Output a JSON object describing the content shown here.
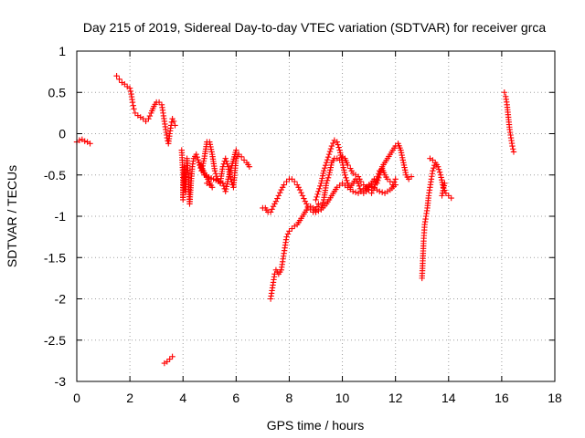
{
  "chart_data": {
    "type": "scatter",
    "title": "Day 215 of 2019, Sidereal Day-to-day VTEC variation (SDTVAR) for receiver grca",
    "xlabel": "GPS time / hours",
    "ylabel": "SDTVAR / TECUs",
    "xlim": [
      0,
      18
    ],
    "ylim": [
      -3,
      1
    ],
    "xticks": [
      0,
      2,
      4,
      6,
      8,
      10,
      12,
      14,
      16,
      18
    ],
    "yticks": [
      1,
      0.5,
      0,
      -0.5,
      -1,
      -1.5,
      -2,
      -2.5,
      -3
    ],
    "grid": true,
    "marker": "+",
    "color": "#ff0000",
    "series": [
      {
        "name": "SDTVAR",
        "segments": [
          [
            [
              0.0,
              -0.1
            ],
            [
              0.1,
              -0.08
            ],
            [
              0.2,
              -0.07
            ],
            [
              0.3,
              -0.09
            ],
            [
              0.4,
              -0.1
            ],
            [
              0.5,
              -0.12
            ]
          ],
          [
            [
              1.5,
              0.7
            ],
            [
              1.6,
              0.66
            ],
            [
              1.7,
              0.62
            ],
            [
              1.8,
              0.6
            ],
            [
              1.9,
              0.57
            ],
            [
              2.0,
              0.55
            ],
            [
              2.05,
              0.48
            ],
            [
              2.1,
              0.38
            ],
            [
              2.15,
              0.3
            ],
            [
              2.2,
              0.25
            ],
            [
              2.3,
              0.22
            ],
            [
              2.4,
              0.2
            ],
            [
              2.5,
              0.18
            ],
            [
              2.6,
              0.15
            ],
            [
              2.7,
              0.18
            ],
            [
              2.8,
              0.25
            ],
            [
              2.9,
              0.33
            ],
            [
              3.0,
              0.38
            ],
            [
              3.1,
              0.38
            ],
            [
              3.2,
              0.35
            ],
            [
              3.25,
              0.25
            ],
            [
              3.3,
              0.15
            ],
            [
              3.35,
              0.05
            ],
            [
              3.4,
              -0.05
            ],
            [
              3.45,
              -0.12
            ],
            [
              3.5,
              0.0
            ],
            [
              3.55,
              0.1
            ],
            [
              3.6,
              0.18
            ],
            [
              3.65,
              0.15
            ],
            [
              3.7,
              0.1
            ]
          ],
          [
            [
              3.3,
              -2.78
            ],
            [
              3.4,
              -2.76
            ],
            [
              3.5,
              -2.73
            ],
            [
              3.6,
              -2.7
            ]
          ],
          [
            [
              3.95,
              -0.2
            ],
            [
              4.0,
              -0.5
            ],
            [
              4.0,
              -0.8
            ],
            [
              4.05,
              -0.4
            ],
            [
              4.1,
              -0.7
            ],
            [
              4.15,
              -0.3
            ],
            [
              4.2,
              -0.5
            ],
            [
              4.25,
              -0.85
            ],
            [
              4.3,
              -0.6
            ],
            [
              4.35,
              -0.4
            ],
            [
              4.4,
              -0.3
            ],
            [
              4.5,
              -0.25
            ],
            [
              4.6,
              -0.35
            ],
            [
              4.7,
              -0.45
            ],
            [
              4.8,
              -0.3
            ],
            [
              4.9,
              -0.1
            ],
            [
              5.0,
              -0.1
            ],
            [
              5.1,
              -0.25
            ],
            [
              5.2,
              -0.45
            ],
            [
              5.3,
              -0.55
            ],
            [
              5.4,
              -0.6
            ],
            [
              5.5,
              -0.4
            ],
            [
              5.6,
              -0.3
            ],
            [
              5.7,
              -0.4
            ],
            [
              5.8,
              -0.55
            ],
            [
              5.9,
              -0.65
            ],
            [
              6.0,
              -0.3
            ],
            [
              6.1,
              -0.25
            ],
            [
              6.2,
              -0.28
            ],
            [
              6.3,
              -0.32
            ],
            [
              6.4,
              -0.35
            ],
            [
              6.5,
              -0.4
            ],
            [
              4.9,
              -0.6
            ],
            [
              5.0,
              -0.62
            ],
            [
              5.1,
              -0.65
            ],
            [
              4.6,
              -0.35
            ],
            [
              4.8,
              -0.5
            ],
            [
              5.5,
              -0.6
            ],
            [
              5.6,
              -0.7
            ],
            [
              5.7,
              -0.55
            ],
            [
              6.0,
              -0.2
            ]
          ],
          [
            [
              7.0,
              -0.9
            ],
            [
              7.1,
              -0.9
            ],
            [
              7.2,
              -0.95
            ],
            [
              7.3,
              -0.95
            ],
            [
              7.4,
              -0.88
            ],
            [
              7.5,
              -0.82
            ],
            [
              7.6,
              -0.75
            ],
            [
              7.7,
              -0.68
            ],
            [
              7.8,
              -0.62
            ],
            [
              7.9,
              -0.58
            ],
            [
              8.0,
              -0.55
            ],
            [
              8.1,
              -0.55
            ],
            [
              8.2,
              -0.58
            ],
            [
              8.3,
              -0.62
            ],
            [
              8.4,
              -0.68
            ],
            [
              8.5,
              -0.75
            ],
            [
              8.6,
              -0.82
            ],
            [
              8.7,
              -0.88
            ],
            [
              8.8,
              -0.92
            ],
            [
              8.9,
              -0.95
            ],
            [
              9.0,
              -0.92
            ],
            [
              9.1,
              -0.85
            ]
          ],
          [
            [
              7.3,
              -2.0
            ],
            [
              7.35,
              -1.9
            ],
            [
              7.4,
              -1.8
            ],
            [
              7.45,
              -1.7
            ],
            [
              7.5,
              -1.65
            ],
            [
              7.6,
              -1.7
            ],
            [
              7.7,
              -1.65
            ],
            [
              7.75,
              -1.55
            ],
            [
              7.8,
              -1.45
            ],
            [
              7.85,
              -1.35
            ],
            [
              7.9,
              -1.25
            ],
            [
              8.0,
              -1.18
            ],
            [
              8.1,
              -1.15
            ],
            [
              8.2,
              -1.12
            ],
            [
              8.3,
              -1.1
            ],
            [
              8.4,
              -1.05
            ],
            [
              8.5,
              -1.0
            ],
            [
              8.6,
              -0.95
            ],
            [
              8.7,
              -0.9
            ],
            [
              8.8,
              -0.88
            ],
            [
              8.9,
              -0.9
            ],
            [
              9.0,
              -0.95
            ]
          ],
          [
            [
              9.0,
              -0.8
            ],
            [
              9.1,
              -0.7
            ],
            [
              9.2,
              -0.6
            ],
            [
              9.3,
              -0.45
            ],
            [
              9.4,
              -0.35
            ],
            [
              9.5,
              -0.25
            ],
            [
              9.6,
              -0.15
            ],
            [
              9.7,
              -0.08
            ],
            [
              9.8,
              -0.1
            ],
            [
              9.9,
              -0.2
            ],
            [
              10.0,
              -0.35
            ],
            [
              10.1,
              -0.5
            ],
            [
              10.2,
              -0.6
            ],
            [
              10.3,
              -0.65
            ],
            [
              10.4,
              -0.6
            ],
            [
              10.5,
              -0.55
            ],
            [
              10.6,
              -0.6
            ],
            [
              10.7,
              -0.7
            ],
            [
              10.8,
              -0.72
            ],
            [
              10.9,
              -0.7
            ],
            [
              11.0,
              -0.65
            ],
            [
              11.1,
              -0.6
            ],
            [
              11.2,
              -0.55
            ],
            [
              11.3,
              -0.6
            ],
            [
              11.4,
              -0.5
            ],
            [
              11.5,
              -0.4
            ],
            [
              11.6,
              -0.35
            ],
            [
              11.7,
              -0.3
            ],
            [
              11.8,
              -0.25
            ],
            [
              11.9,
              -0.2
            ],
            [
              12.0,
              -0.15
            ],
            [
              12.1,
              -0.12
            ],
            [
              12.2,
              -0.2
            ],
            [
              12.3,
              -0.35
            ],
            [
              12.4,
              -0.5
            ],
            [
              12.5,
              -0.55
            ],
            [
              12.6,
              -0.52
            ]
          ],
          [
            [
              9.2,
              -0.9
            ],
            [
              9.3,
              -0.8
            ],
            [
              9.4,
              -0.6
            ],
            [
              9.5,
              -0.5
            ],
            [
              9.6,
              -0.35
            ],
            [
              9.7,
              -0.3
            ],
            [
              9.8,
              -0.3
            ],
            [
              9.9,
              -0.32
            ],
            [
              10.0,
              -0.28
            ],
            [
              10.1,
              -0.3
            ],
            [
              10.2,
              -0.38
            ],
            [
              10.3,
              -0.42
            ],
            [
              10.4,
              -0.48
            ],
            [
              10.5,
              -0.5
            ],
            [
              10.6,
              -0.52
            ],
            [
              10.7,
              -0.58
            ],
            [
              10.8,
              -0.62
            ],
            [
              10.9,
              -0.66
            ],
            [
              11.0,
              -0.68
            ],
            [
              11.1,
              -0.72
            ],
            [
              11.2,
              -0.65
            ],
            [
              11.3,
              -0.55
            ],
            [
              11.4,
              -0.45
            ],
            [
              11.5,
              -0.42
            ],
            [
              11.6,
              -0.5
            ],
            [
              11.7,
              -0.55
            ],
            [
              11.8,
              -0.58
            ],
            [
              11.9,
              -0.62
            ],
            [
              12.0,
              -0.55
            ]
          ],
          [
            [
              9.0,
              -0.95
            ],
            [
              9.2,
              -0.92
            ],
            [
              9.4,
              -0.85
            ],
            [
              9.6,
              -0.75
            ],
            [
              9.8,
              -0.65
            ],
            [
              10.0,
              -0.6
            ],
            [
              10.2,
              -0.65
            ],
            [
              10.4,
              -0.7
            ],
            [
              10.6,
              -0.72
            ],
            [
              10.8,
              -0.68
            ],
            [
              11.0,
              -0.62
            ],
            [
              11.2,
              -0.66
            ],
            [
              11.4,
              -0.7
            ],
            [
              11.6,
              -0.72
            ],
            [
              11.8,
              -0.68
            ],
            [
              12.0,
              -0.62
            ]
          ],
          [
            [
              13.0,
              -1.75
            ],
            [
              13.02,
              -1.6
            ],
            [
              13.04,
              -1.45
            ],
            [
              13.06,
              -1.3
            ],
            [
              13.08,
              -1.2
            ],
            [
              13.1,
              -1.1
            ],
            [
              13.15,
              -1.0
            ],
            [
              13.2,
              -0.9
            ],
            [
              13.25,
              -0.75
            ],
            [
              13.3,
              -0.65
            ],
            [
              13.35,
              -0.55
            ],
            [
              13.4,
              -0.45
            ],
            [
              13.5,
              -0.35
            ],
            [
              13.6,
              -0.4
            ],
            [
              13.7,
              -0.5
            ],
            [
              13.8,
              -0.65
            ],
            [
              13.9,
              -0.72
            ],
            [
              14.0,
              -0.75
            ],
            [
              14.1,
              -0.78
            ],
            [
              13.3,
              -0.3
            ],
            [
              13.4,
              -0.32
            ],
            [
              13.75,
              -0.75
            ],
            [
              13.85,
              -0.6
            ]
          ],
          [
            [
              16.1,
              0.5
            ],
            [
              16.15,
              0.45
            ],
            [
              16.2,
              0.35
            ],
            [
              16.25,
              0.2
            ],
            [
              16.3,
              0.05
            ],
            [
              16.35,
              -0.05
            ],
            [
              16.4,
              -0.15
            ],
            [
              16.45,
              -0.22
            ]
          ]
        ]
      }
    ]
  }
}
